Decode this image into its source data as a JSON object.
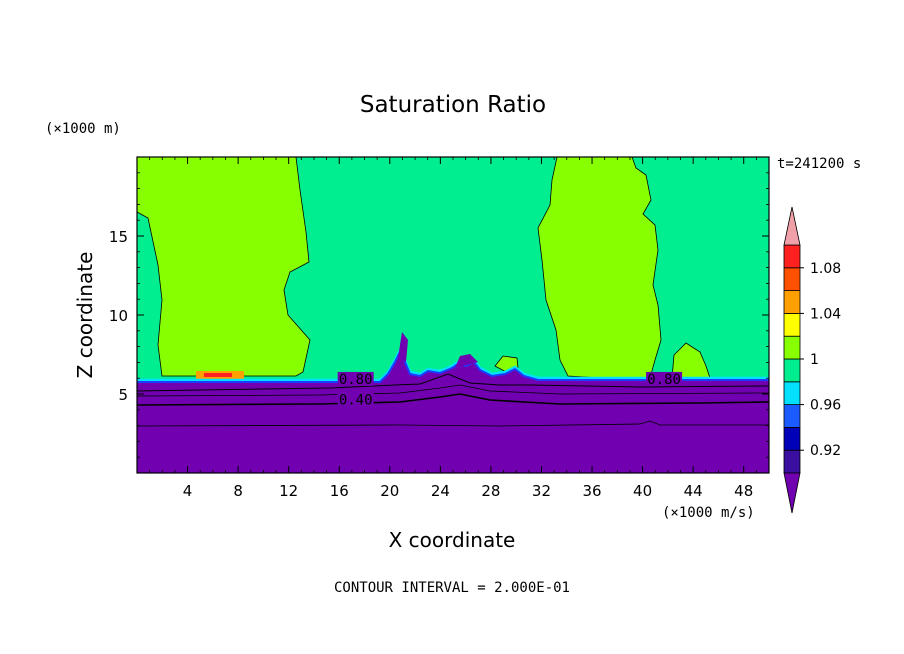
{
  "chart_data": {
    "type": "heatmap",
    "title": "Saturation Ratio",
    "xlabel": "X coordinate",
    "ylabel": "Z coordinate",
    "x_unit": "(×1000 m/s)",
    "y_unit": "(×1000 m)",
    "time_label": "t=241200 s",
    "footer": "CONTOUR INTERVAL = 2.000E-01",
    "xlim": [
      0,
      50
    ],
    "ylim": [
      0,
      20
    ],
    "x_ticks": [
      4,
      8,
      12,
      16,
      20,
      24,
      28,
      32,
      36,
      40,
      44,
      48
    ],
    "y_ticks": [
      5,
      10,
      15
    ],
    "contour_labels": [
      {
        "text": "0.80",
        "x": 17.3,
        "z": 5.7
      },
      {
        "text": "0.40",
        "x": 17.3,
        "z": 4.4
      },
      {
        "text": "0.80",
        "x": 41.7,
        "z": 5.7
      }
    ],
    "colorbar": {
      "tick_labels": [
        "1.08",
        "1.04",
        "1",
        "0.96",
        "0.92"
      ],
      "levels": [
        0.9,
        0.92,
        0.94,
        0.96,
        0.98,
        1.0,
        1.02,
        1.04,
        1.06,
        1.08,
        1.1
      ],
      "colors": [
        "#3a0fa0",
        "#0000b8",
        "#1c5cff",
        "#00e0ff",
        "#00ee90",
        "#88ff00",
        "#ffff00",
        "#ffa000",
        "#ff5000",
        "#ff2020",
        "#f0a0a8"
      ],
      "under_color": "#7000b0",
      "over_color": "#f0a0a8"
    },
    "field_colors": {
      "subsaturated": "#7000b0",
      "near_saturation": "#00ee90",
      "supersaturated": "#88ff00"
    }
  }
}
